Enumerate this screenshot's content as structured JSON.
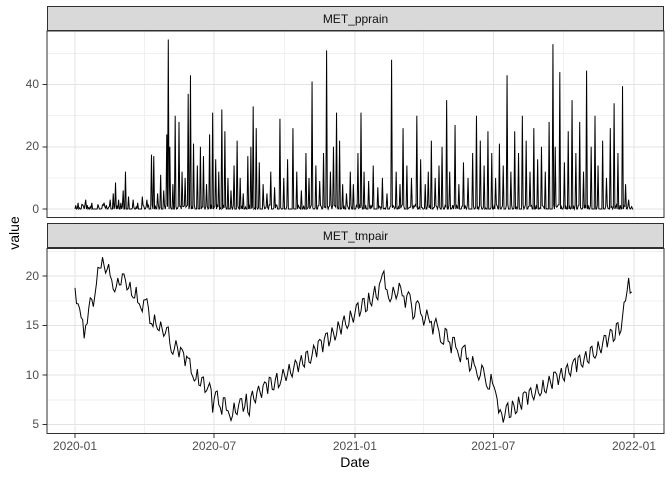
{
  "figure": {
    "y_axis_title": "value",
    "x_axis_title": "Date",
    "facets": [
      {
        "label": "MET_pprain"
      },
      {
        "label": "MET_tmpair"
      }
    ]
  },
  "colors": {
    "line": "#000000",
    "strip_fill": "#D9D9D9",
    "panel_border": "#2F2F2F",
    "grid_major": "#E3E3E3",
    "grid_minor": "#F0F0F0",
    "tick_mark": "#333333",
    "tick_text": "#4D4D4D",
    "background": "#FFFFFF"
  },
  "chart_data": [
    {
      "type": "line",
      "facet": "MET_pprain",
      "x_unit": "days since 2020-01-01",
      "x_tick_labels": [
        "2020-01",
        "2020-07",
        "2021-01",
        "2021-07",
        "2022-01"
      ],
      "x_tick_days": [
        0,
        182,
        366,
        547,
        731
      ],
      "x_minor_days": [
        91,
        274,
        456,
        639
      ],
      "y_tick_labels": [
        "0",
        "20",
        "40"
      ],
      "y_ticks": [
        0,
        20,
        40
      ],
      "y_minor": [
        10,
        30,
        50
      ],
      "ylim": [
        -2.8,
        57.2
      ],
      "grid": true,
      "legend": "none",
      "baseline_noise_max": 1.4,
      "rain_events_day_value": [
        [
          4,
          2
        ],
        [
          9,
          1.5
        ],
        [
          14,
          3
        ],
        [
          22,
          2
        ],
        [
          30,
          1.5
        ],
        [
          38,
          2
        ],
        [
          46,
          3
        ],
        [
          50,
          5
        ],
        [
          53,
          8.5
        ],
        [
          57,
          3
        ],
        [
          60,
          2
        ],
        [
          63,
          6
        ],
        [
          66,
          12
        ],
        [
          70,
          4
        ],
        [
          76,
          3
        ],
        [
          82,
          2
        ],
        [
          88,
          4
        ],
        [
          94,
          3
        ],
        [
          100,
          17.5
        ],
        [
          103,
          17
        ],
        [
          108,
          5
        ],
        [
          112,
          11
        ],
        [
          116,
          6
        ],
        [
          120,
          24
        ],
        [
          122,
          54.5
        ],
        [
          124,
          20
        ],
        [
          128,
          8
        ],
        [
          131,
          30
        ],
        [
          136,
          28
        ],
        [
          140,
          12
        ],
        [
          144,
          10
        ],
        [
          148,
          37
        ],
        [
          151,
          43
        ],
        [
          155,
          21
        ],
        [
          160,
          14
        ],
        [
          164,
          20
        ],
        [
          168,
          17
        ],
        [
          172,
          8
        ],
        [
          176,
          24
        ],
        [
          180,
          31
        ],
        [
          184,
          16
        ],
        [
          188,
          12
        ],
        [
          192,
          32
        ],
        [
          196,
          25
        ],
        [
          200,
          10
        ],
        [
          204,
          6
        ],
        [
          208,
          14
        ],
        [
          212,
          22
        ],
        [
          216,
          10
        ],
        [
          220,
          5
        ],
        [
          226,
          17
        ],
        [
          230,
          20
        ],
        [
          233,
          33
        ],
        [
          237,
          26
        ],
        [
          241,
          15
        ],
        [
          246,
          8
        ],
        [
          251,
          5
        ],
        [
          256,
          12
        ],
        [
          261,
          7
        ],
        [
          268,
          29
        ],
        [
          273,
          10
        ],
        [
          278,
          16
        ],
        [
          285,
          26
        ],
        [
          290,
          12
        ],
        [
          296,
          6
        ],
        [
          302,
          18
        ],
        [
          306,
          10
        ],
        [
          310,
          41
        ],
        [
          315,
          14
        ],
        [
          320,
          9
        ],
        [
          325,
          18
        ],
        [
          329,
          51
        ],
        [
          334,
          12
        ],
        [
          338,
          20
        ],
        [
          342,
          31
        ],
        [
          346,
          22
        ],
        [
          350,
          8
        ],
        [
          355,
          5
        ],
        [
          360,
          12
        ],
        [
          364,
          8
        ],
        [
          370,
          18
        ],
        [
          374,
          31
        ],
        [
          378,
          12
        ],
        [
          384,
          9
        ],
        [
          390,
          14
        ],
        [
          396,
          7
        ],
        [
          402,
          10
        ],
        [
          408,
          5
        ],
        [
          414,
          48
        ],
        [
          420,
          12
        ],
        [
          425,
          8
        ],
        [
          429,
          26
        ],
        [
          434,
          14
        ],
        [
          440,
          10
        ],
        [
          447,
          30
        ],
        [
          452,
          16
        ],
        [
          458,
          8
        ],
        [
          462,
          12
        ],
        [
          466,
          22
        ],
        [
          471,
          10
        ],
        [
          476,
          14
        ],
        [
          480,
          20
        ],
        [
          486,
          35
        ],
        [
          490,
          12
        ],
        [
          497,
          27
        ],
        [
          502,
          8
        ],
        [
          508,
          15
        ],
        [
          514,
          10
        ],
        [
          520,
          18
        ],
        [
          525,
          30
        ],
        [
          530,
          22
        ],
        [
          535,
          14
        ],
        [
          540,
          25
        ],
        [
          545,
          18
        ],
        [
          550,
          10
        ],
        [
          555,
          21
        ],
        [
          560,
          14
        ],
        [
          565,
          43
        ],
        [
          570,
          12
        ],
        [
          575,
          25
        ],
        [
          580,
          18
        ],
        [
          585,
          30
        ],
        [
          590,
          22
        ],
        [
          595,
          12
        ],
        [
          600,
          26
        ],
        [
          605,
          16
        ],
        [
          610,
          20
        ],
        [
          615,
          12
        ],
        [
          620,
          28
        ],
        [
          625,
          53
        ],
        [
          628,
          20
        ],
        [
          634,
          44
        ],
        [
          640,
          15
        ],
        [
          645,
          25
        ],
        [
          650,
          35
        ],
        [
          655,
          18
        ],
        [
          660,
          28
        ],
        [
          665,
          12
        ],
        [
          669,
          44.5
        ],
        [
          675,
          20
        ],
        [
          680,
          30
        ],
        [
          684,
          14
        ],
        [
          690,
          22
        ],
        [
          695,
          10
        ],
        [
          700,
          26
        ],
        [
          705,
          34
        ],
        [
          710,
          18
        ],
        [
          716,
          39.5
        ],
        [
          720,
          8
        ],
        [
          724,
          3
        ]
      ]
    },
    {
      "type": "line",
      "facet": "MET_tmpair",
      "x_unit": "days since 2020-01-01",
      "x_tick_labels": [
        "2020-01",
        "2020-07",
        "2021-01",
        "2021-07",
        "2022-01"
      ],
      "x_tick_days": [
        0,
        182,
        366,
        547,
        731
      ],
      "x_minor_days": [
        91,
        274,
        456,
        639
      ],
      "y_tick_labels": [
        "5",
        "10",
        "15",
        "20"
      ],
      "y_ticks": [
        5,
        10,
        15,
        20
      ],
      "y_minor": [
        7.5,
        12.5,
        17.5,
        22.5
      ],
      "ylim": [
        4.1,
        22.8
      ],
      "grid": true,
      "legend": "none",
      "sample_step_days": 4,
      "midpoint_jitter": 0.9,
      "values": [
        18.8,
        17.2,
        15.8,
        13.7,
        15.2,
        17.8,
        16.9,
        19.2,
        20.8,
        21.9,
        20.3,
        21.2,
        19.6,
        18.4,
        19.8,
        19.1,
        20.2,
        18.6,
        19.4,
        17.8,
        18.9,
        17.2,
        16.4,
        17.6,
        16.8,
        15.2,
        16.1,
        14.6,
        15.4,
        13.9,
        14.8,
        13.2,
        12.1,
        13.5,
        11.8,
        12.6,
        10.9,
        11.7,
        10.2,
        9.4,
        10.6,
        8.9,
        9.8,
        8.4,
        9.2,
        6.2,
        8.3,
        7.0,
        6.0,
        7.7,
        6.4,
        5.4,
        7.2,
        6.0,
        7.6,
        6.3,
        8.1,
        5.9,
        8.4,
        7.2,
        8.9,
        7.7,
        9.3,
        8.1,
        9.7,
        8.5,
        10.2,
        9.0,
        10.6,
        9.4,
        11.1,
        9.8,
        11.5,
        10.3,
        12.0,
        10.8,
        12.4,
        11.2,
        13.0,
        11.8,
        13.6,
        12.3,
        14.2,
        12.9,
        14.8,
        13.5,
        15.4,
        14.1,
        16.0,
        14.7,
        16.5,
        15.3,
        17.1,
        15.9,
        17.7,
        16.4,
        18.3,
        17.0,
        19.0,
        17.6,
        19.6,
        20.5,
        18.6,
        17.4,
        18.9,
        17.7,
        19.3,
        18.0,
        16.8,
        18.4,
        17.1,
        15.9,
        17.5,
        16.2,
        15.0,
        16.6,
        15.3,
        14.1,
        15.7,
        14.4,
        13.2,
        14.7,
        13.4,
        12.2,
        13.8,
        12.5,
        11.3,
        12.9,
        11.6,
        10.4,
        11.9,
        10.7,
        9.5,
        11.0,
        9.8,
        8.6,
        10.1,
        8.8,
        7.6,
        6.5,
        5.2,
        6.9,
        5.7,
        7.4,
        6.1,
        7.8,
        6.5,
        8.3,
        7.0,
        8.7,
        7.5,
        9.1,
        7.9,
        9.5,
        8.2,
        9.9,
        8.6,
        10.3,
        9.0,
        10.7,
        9.4,
        11.1,
        9.9,
        11.5,
        10.3,
        12.0,
        10.8,
        12.4,
        11.2,
        12.9,
        11.7,
        13.4,
        12.2,
        14.0,
        12.8,
        14.6,
        13.4,
        15.2,
        14.1,
        15.9,
        17.5,
        19.8,
        18.4
      ]
    }
  ]
}
